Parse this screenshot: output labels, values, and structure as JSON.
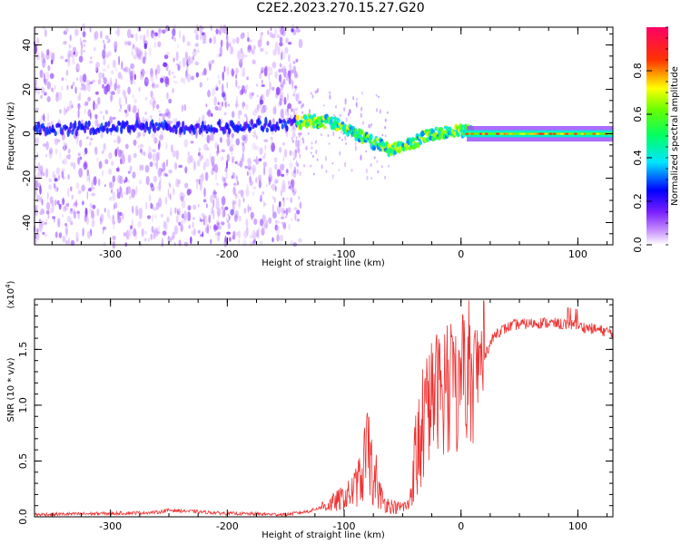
{
  "figure": {
    "title": "C2E2.2023.270.15.27.G20"
  },
  "chart_data": [
    {
      "type": "heatmap",
      "name": "spectrogram",
      "xlabel": "Height of straight line (km)",
      "ylabel": "Frequency (Hz)",
      "xlim": [
        -365,
        130
      ],
      "ylim": [
        -50,
        48
      ],
      "xticks": [
        -300,
        -200,
        -100,
        0,
        100
      ],
      "yticks": [
        -40,
        -20,
        0,
        20,
        40
      ],
      "colorbar": {
        "label": "Normalized spectral amplitude",
        "range": [
          0,
          1
        ],
        "ticks": [
          "0.0",
          "0.2",
          "0.4",
          "0.6",
          "0.8"
        ],
        "tick_values": [
          0,
          0.2,
          0.4,
          0.6,
          0.8
        ],
        "colormap": [
          "#ffffff",
          "#cc99ff",
          "#6600ff",
          "#0000ff",
          "#00e6ff",
          "#00ff66",
          "#ffff00",
          "#ff3300",
          "#ff0066"
        ]
      },
      "features": {
        "noise_region_x": [
          -365,
          -145
        ],
        "ridge": [
          {
            "x": -350,
            "y": 2
          },
          {
            "x": -300,
            "y": 3
          },
          {
            "x": -250,
            "y": 3
          },
          {
            "x": -200,
            "y": 3
          },
          {
            "x": -150,
            "y": 4
          },
          {
            "x": -130,
            "y": 6
          },
          {
            "x": -110,
            "y": 5
          },
          {
            "x": -90,
            "y": 0
          },
          {
            "x": -75,
            "y": -4
          },
          {
            "x": -60,
            "y": -7
          },
          {
            "x": -45,
            "y": -5
          },
          {
            "x": -30,
            "y": -1
          },
          {
            "x": -15,
            "y": 1
          },
          {
            "x": 0,
            "y": 1
          },
          {
            "x": 30,
            "y": 0
          },
          {
            "x": 60,
            "y": 0
          },
          {
            "x": 100,
            "y": 0
          },
          {
            "x": 130,
            "y": 0
          }
        ]
      }
    },
    {
      "type": "line",
      "name": "snr",
      "xlabel": "Height of straight line (km)",
      "ylabel": "SNR (10 * v/v)",
      "scale_note": "(x10",
      "scale_exp": "4",
      "scale_close": ")",
      "xlim": [
        -365,
        130
      ],
      "ylim": [
        0,
        1.95
      ],
      "xticks": [
        -300,
        -200,
        -100,
        0,
        100
      ],
      "yticks": [
        "0.0",
        "0.5",
        "1.0",
        "1.5"
      ],
      "ytick_values": [
        0,
        0.5,
        1.0,
        1.5
      ],
      "color": "#ee3333",
      "envelope": [
        {
          "x": -365,
          "y": 0.02
        },
        {
          "x": -300,
          "y": 0.03
        },
        {
          "x": -260,
          "y": 0.04
        },
        {
          "x": -250,
          "y": 0.06
        },
        {
          "x": -200,
          "y": 0.03
        },
        {
          "x": -150,
          "y": 0.02
        },
        {
          "x": -130,
          "y": 0.05
        },
        {
          "x": -110,
          "y": 0.12
        },
        {
          "x": -95,
          "y": 0.2
        },
        {
          "x": -85,
          "y": 0.35
        },
        {
          "x": -80,
          "y": 0.6
        },
        {
          "x": -75,
          "y": 0.3
        },
        {
          "x": -65,
          "y": 0.12
        },
        {
          "x": -55,
          "y": 0.08
        },
        {
          "x": -45,
          "y": 0.1
        },
        {
          "x": -38,
          "y": 0.55
        },
        {
          "x": -30,
          "y": 0.95
        },
        {
          "x": -20,
          "y": 1.15
        },
        {
          "x": -10,
          "y": 1.05
        },
        {
          "x": 0,
          "y": 1.1
        },
        {
          "x": 10,
          "y": 1.2
        },
        {
          "x": 20,
          "y": 1.45
        },
        {
          "x": 30,
          "y": 1.65
        },
        {
          "x": 45,
          "y": 1.72
        },
        {
          "x": 70,
          "y": 1.74
        },
        {
          "x": 95,
          "y": 1.72
        },
        {
          "x": 115,
          "y": 1.68
        },
        {
          "x": 130,
          "y": 1.65
        }
      ]
    }
  ]
}
